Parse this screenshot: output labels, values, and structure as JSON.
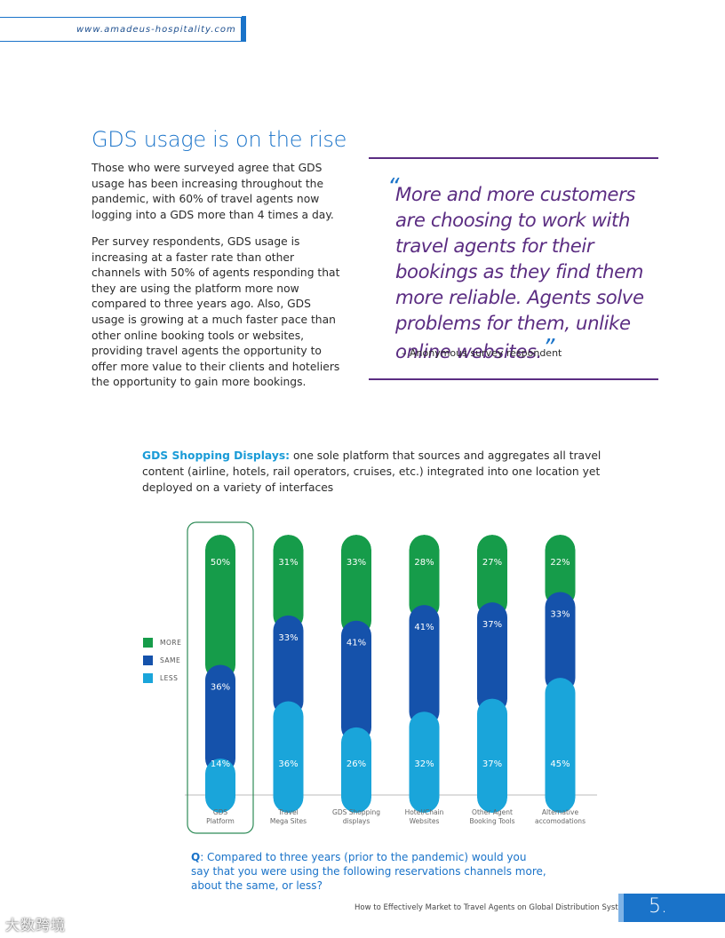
{
  "header": {
    "url": "www.amadeus-hospitality.com"
  },
  "section": {
    "title": "GDS usage is on the rise",
    "paragraph1": "Those who were surveyed agree that GDS usage has been increasing throughout the pandemic, with 60% of travel agents now logging into a GDS more than 4 times a day.",
    "paragraph2": "Per survey respondents, GDS usage is increasing at a faster rate than other channels with 50% of agents responding that they are using the platform more now compared to three years ago. Also, GDS usage is growing at a much faster pace than other online booking tools or websites, providing travel agents the opportunity to offer more value to their clients and hoteliers the opportunity to gain more bookings."
  },
  "quote": {
    "open_mark": "“",
    "text": "More and more customers are choosing to work with travel agents for their bookings as they find them more reliable. Agents solve problems for them, unlike online websites.",
    "close_mark": "”",
    "attribution": "–  Anonymous survey respondent"
  },
  "chart_intro": {
    "bold_label": "GDS Shopping Displays:",
    "text": " one sole platform that sources and aggregates all travel content (airline, hotels, rail operators, cruises, etc.) integrated into one location yet deployed on a variety of interfaces"
  },
  "colors": {
    "more": "#169c4a",
    "same": "#1552ab",
    "less": "#1aa5da",
    "accent": "#1a73c9",
    "purple": "#5b2d82"
  },
  "chart_data": {
    "type": "bar",
    "stacked": true,
    "categories": [
      "GDS Platform",
      "Travel Mega Sites",
      "GDS Shopping displays",
      "Hotel/Chain Websites",
      "Other Agent Booking Tools",
      "Alternative accomodations"
    ],
    "category_lines": [
      [
        "GDS",
        "Platform"
      ],
      [
        "Travel",
        "Mega Sites"
      ],
      [
        "GDS Shopping",
        "displays"
      ],
      [
        "Hotel/Chain",
        "Websites"
      ],
      [
        "Other Agent",
        "Booking Tools"
      ],
      [
        "Alternative",
        "accomodations"
      ]
    ],
    "series": [
      {
        "name": "LESS",
        "values": [
          14,
          36,
          26,
          32,
          37,
          45
        ]
      },
      {
        "name": "SAME",
        "values": [
          36,
          33,
          41,
          41,
          37,
          33
        ]
      },
      {
        "name": "MORE",
        "values": [
          50,
          31,
          33,
          28,
          27,
          22
        ]
      }
    ],
    "labels": {
      "LESS": [
        "14%",
        "36%",
        "26%",
        "32%",
        "37%",
        "45%"
      ],
      "SAME": [
        "36%",
        "33%",
        "41%",
        "41%",
        "37%",
        "33%"
      ],
      "MORE": [
        "50%",
        "31%",
        "33%",
        "28%",
        "27%",
        "22%"
      ]
    },
    "highlighted_category": "GDS Platform",
    "legend": [
      "MORE",
      "SAME",
      "LESS"
    ],
    "ylim": [
      0,
      100
    ]
  },
  "question": {
    "label": "Q",
    "text": ": Compared to three years (prior to the pandemic) would you say that you were using the following reservations channels more, about the same, or less?"
  },
  "footer": {
    "title": "How to Effectively Market to Travel Agents on Global Distribution Systems",
    "page": "5."
  },
  "watermark": "大数跨境"
}
